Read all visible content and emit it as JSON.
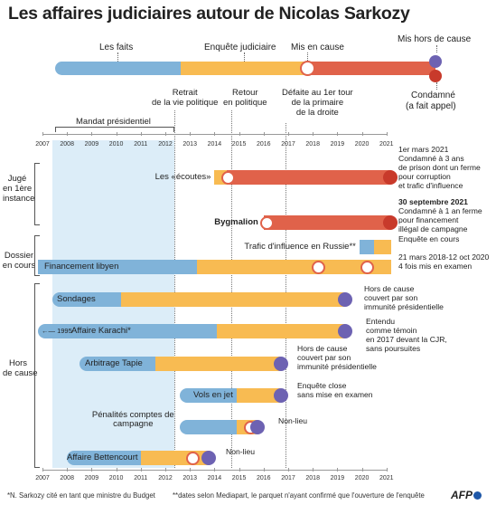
{
  "title": "Les affaires judiciaires autour de Nicolas Sarkozy",
  "colors": {
    "faits": "#80b3d9",
    "enquete": "#f8bb52",
    "mis_en_cause": "#e0624a",
    "hors_cause": "#6d62b2",
    "condamne": "#c83a2b",
    "mandat": "#dcedf8"
  },
  "legend": {
    "faits": "Les faits",
    "enquete": "Enquête judiciaire",
    "mis_en_cause": "Mis en cause",
    "hors_cause": "Mis hors de cause",
    "condamne_line1": "Condamné",
    "condamne_line2": "(a fait appel)"
  },
  "annotations": {
    "retrait": [
      "Retrait",
      "de la vie politique"
    ],
    "retour": [
      "Retour",
      "en politique"
    ],
    "defaite": [
      "Défaite au 1er tour",
      "de la primaire",
      "de la droite"
    ],
    "mandat": "Mandat présidentiel"
  },
  "years": [
    "2007",
    "2008",
    "2009",
    "2010",
    "2011",
    "2012",
    "2013",
    "2014",
    "2015",
    "2016",
    "2017",
    "2018",
    "2019",
    "2020",
    "2021"
  ],
  "groups": {
    "juge": [
      "Jugé",
      "en 1ère",
      "instance"
    ],
    "dossier": [
      "Dossier",
      "en cours"
    ],
    "hors": [
      "Hors",
      "de cause"
    ]
  },
  "cases": [
    {
      "label": "Les «écoutes»",
      "bold": false,
      "segments": [
        [
          "enquete",
          2014.0,
          2014.5
        ],
        [
          "mis_en_cause",
          2014.5,
          2021.2
        ]
      ],
      "markers": [
        [
          2014.55,
          "open"
        ],
        [
          2021.15,
          "condamne"
        ]
      ],
      "note": [
        "1er mars 2021",
        "Condamné à 3 ans",
        "de prison dont un ferme",
        "pour corruption",
        "et trafic d'influence"
      ]
    },
    {
      "label": "Bygmalion",
      "bold": true,
      "segments": [
        [
          "mis_en_cause",
          2016.0,
          2021.2
        ]
      ],
      "markers": [
        [
          2016.1,
          "open"
        ],
        [
          2021.15,
          "condamne"
        ]
      ],
      "note_bold": "30 septembre 2021",
      "note": [
        "Condamné à 1 an ferme",
        "pour financement",
        "illégal de campagne"
      ]
    },
    {
      "label": "Trafic d'influence en Russie**",
      "bold": false,
      "segments": [
        [
          "faits",
          2019.9,
          2020.5
        ],
        [
          "enquete",
          2020.5,
          2021.2
        ]
      ],
      "markers": [],
      "note": [
        "Enquête en cours"
      ]
    },
    {
      "label": "Financement libyen",
      "bold": false,
      "segments": [
        [
          "faits",
          2006.8,
          2013.3
        ],
        [
          "enquete",
          2013.3,
          2021.2
        ]
      ],
      "markers": [
        [
          2018.2,
          "open"
        ],
        [
          2020.2,
          "open"
        ]
      ],
      "note": [
        "21 mars 2018-12 oct 2020",
        "4 fois mis en examen"
      ]
    },
    {
      "label": "Sondages",
      "bold": false,
      "segments": [
        [
          "faits",
          2007.4,
          2010.2
        ],
        [
          "enquete",
          2010.2,
          2019.3
        ]
      ],
      "markers": [
        [
          2019.3,
          "hors"
        ]
      ],
      "note": [
        "Hors de cause",
        "couvert par son",
        "immunité présidentielle"
      ]
    },
    {
      "label": "Affaire Karachi*",
      "bold": false,
      "prefix": "1995",
      "segments": [
        [
          "faits",
          2006.8,
          2014.1
        ],
        [
          "enquete",
          2014.1,
          2019.3
        ]
      ],
      "markers": [
        [
          2019.3,
          "hors"
        ]
      ],
      "note": [
        "Entendu",
        "comme témoin",
        "en 2017 devant la CJR,",
        "sans poursuites"
      ]
    },
    {
      "label": "Arbitrage Tapie",
      "bold": false,
      "segments": [
        [
          "faits",
          2008.5,
          2011.6
        ],
        [
          "enquete",
          2011.6,
          2016.7
        ]
      ],
      "markers": [
        [
          2016.7,
          "hors"
        ]
      ],
      "note": [
        "Hors de cause",
        "couvert par son",
        "immunité présidentielle"
      ]
    },
    {
      "label": "Vols en jet",
      "bold": false,
      "segments": [
        [
          "faits",
          2012.6,
          2014.9
        ],
        [
          "enquete",
          2014.9,
          2016.7
        ]
      ],
      "markers": [
        [
          2016.7,
          "hors"
        ]
      ],
      "note": [
        "Enquête close",
        "sans mise en examen"
      ]
    },
    {
      "label": "Pénalités comptes de campagne",
      "bold": false,
      "segments": [
        [
          "faits",
          2012.6,
          2014.9
        ],
        [
          "enquete",
          2014.9,
          2015.8
        ]
      ],
      "markers": [
        [
          2015.45,
          "open"
        ],
        [
          2015.75,
          "hors"
        ]
      ],
      "note": [
        "Non-lieu"
      ]
    },
    {
      "label": "Affaire Bettencourt",
      "bold": false,
      "segments": [
        [
          "faits",
          2008.0,
          2011.0
        ],
        [
          "enquete",
          2011.0,
          2013.8
        ]
      ],
      "markers": [
        [
          2013.1,
          "open"
        ],
        [
          2013.75,
          "hors"
        ]
      ],
      "note": [
        "Non-lieu"
      ]
    }
  ],
  "footnotes": [
    "*N. Sarkozy cité en tant que ministre du Budget",
    "**dates selon Mediapart, le parquet n'ayant confirmé que l'ouverture de l'enquête"
  ],
  "credit": "AFP"
}
